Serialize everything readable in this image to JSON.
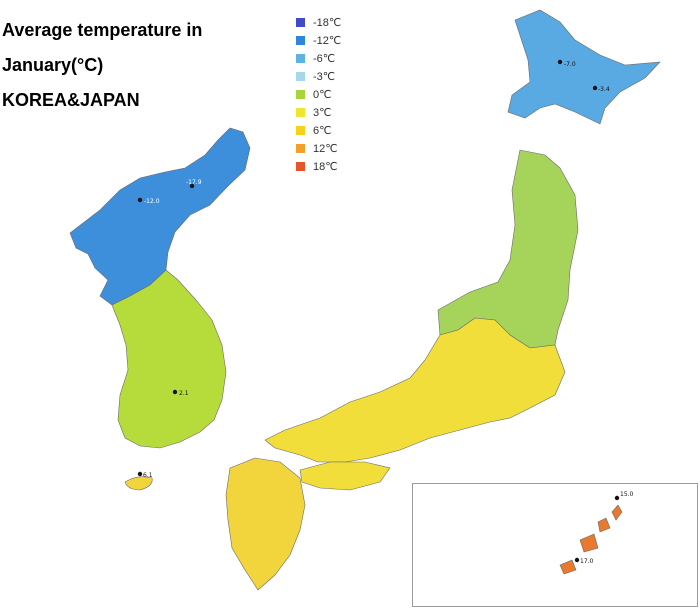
{
  "title": {
    "line1": "Average temperature in",
    "line2": "January(°C)",
    "line3": "KOREA&JAPAN"
  },
  "legend": [
    {
      "label": "-18℃",
      "color": "#3f4bc7"
    },
    {
      "label": "-12℃",
      "color": "#2f86d8"
    },
    {
      "label": "-6℃",
      "color": "#5fb3e3"
    },
    {
      "label": "-3℃",
      "color": "#a6d8ea"
    },
    {
      "label": "0℃",
      "color": "#a8d43a"
    },
    {
      "label": "3℃",
      "color": "#f0e632"
    },
    {
      "label": "6℃",
      "color": "#f6d21a"
    },
    {
      "label": "12℃",
      "color": "#f2a02a"
    },
    {
      "label": "18℃",
      "color": "#e8542a"
    }
  ],
  "region_colors": {
    "korea_north": "#3d8fdc",
    "korea_south": "#b6dc3c",
    "hokkaido": "#59a9e2",
    "honshu_north": "#a6d45a",
    "honshu_south": "#f1de3a",
    "kyushu": "#f2d43c",
    "okinawa": "#e77a2e"
  },
  "station_labels": [
    {
      "id": "korea-a",
      "text": "-12.0"
    },
    {
      "id": "korea-b",
      "text": "-17.9"
    },
    {
      "id": "korea-c",
      "text": "2.1"
    },
    {
      "id": "hokkaido-a",
      "text": "-7.0"
    },
    {
      "id": "hokkaido-b",
      "text": "-3.4"
    },
    {
      "id": "jeju",
      "text": "6.1"
    },
    {
      "id": "okinawa-a",
      "text": "15.0"
    },
    {
      "id": "okinawa-b",
      "text": "17.0"
    }
  ]
}
